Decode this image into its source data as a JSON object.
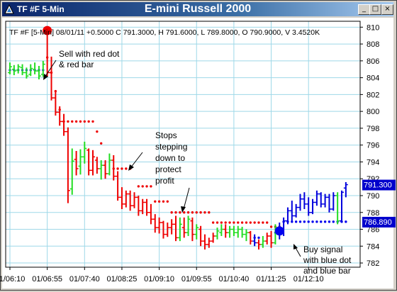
{
  "window": {
    "symbol": "TF #F 5-Min",
    "title": "E-mini Russell 2000",
    "buttons": {
      "minimize": "_",
      "maximize": "□",
      "close": "×"
    }
  },
  "chart_data": {
    "type": "bar",
    "info_line": "TF #F [5-Min] 08/01/11  +0.5000 C 791.3000, H 791.6000, L 789.8000, O 790.9000, V 3.4520K",
    "y_ticks": [
      "810",
      "808",
      "806",
      "804",
      "802",
      "800",
      "798",
      "796",
      "794",
      "792",
      "790",
      "788",
      "786",
      "784",
      "782"
    ],
    "ylim": [
      781.5,
      810.7
    ],
    "x_ticks": [
      "01/06:10",
      "01/06:55",
      "01/07:40",
      "01/08:25",
      "01/09:10",
      "01/09:55",
      "01/10:40",
      "01/11:25",
      "01/12:10"
    ],
    "last_price_label": "791.300",
    "stop_price_label": "786.890",
    "annotations": {
      "sell": [
        "Sell with red dot",
        "& red bar"
      ],
      "stops": [
        "Stops",
        "stepping",
        "down to",
        "protect",
        "profit"
      ],
      "buy": [
        "Buy signal",
        "with blue dot",
        "and blue bar"
      ]
    },
    "colors": {
      "down_bar": "#ee0000",
      "up_bar": "#22dd22",
      "buy_bar": "#0000dd",
      "sell_dot": "#ee0000",
      "buy_dot": "#0000ee",
      "grid": "#9ed8e8",
      "price_label_bg": "#0000cc"
    },
    "bars": [
      {
        "o": 804.6,
        "h": 805.8,
        "l": 804.4,
        "c": 805.3,
        "k": "g"
      },
      {
        "o": 805.0,
        "h": 805.5,
        "l": 804.3,
        "c": 804.8,
        "k": "g"
      },
      {
        "o": 804.9,
        "h": 805.6,
        "l": 804.5,
        "c": 805.3,
        "k": "g"
      },
      {
        "o": 805.2,
        "h": 805.6,
        "l": 804.3,
        "c": 804.6,
        "k": "g"
      },
      {
        "o": 804.6,
        "h": 805.2,
        "l": 803.9,
        "c": 804.2,
        "k": "g"
      },
      {
        "o": 804.4,
        "h": 805.6,
        "l": 804.2,
        "c": 805.1,
        "k": "g"
      },
      {
        "o": 805.0,
        "h": 805.8,
        "l": 804.4,
        "c": 804.8,
        "k": "g"
      },
      {
        "o": 804.8,
        "h": 805.4,
        "l": 803.8,
        "c": 804.2,
        "k": "g"
      },
      {
        "o": 804.4,
        "h": 806.0,
        "l": 804.1,
        "c": 805.6,
        "k": "g"
      },
      {
        "o": 809.5,
        "h": 809.6,
        "l": 804.1,
        "c": 804.6,
        "k": "r"
      },
      {
        "o": 804.6,
        "h": 806.5,
        "l": 801.3,
        "c": 801.6,
        "k": "r"
      },
      {
        "o": 801.6,
        "h": 802.4,
        "l": 799.5,
        "c": 799.9,
        "k": "r"
      },
      {
        "o": 799.9,
        "h": 800.6,
        "l": 798.3,
        "c": 798.8,
        "k": "r"
      },
      {
        "o": 798.8,
        "h": 799.7,
        "l": 797.1,
        "c": 797.6,
        "k": "r"
      },
      {
        "o": 797.6,
        "h": 798.1,
        "l": 789.1,
        "c": 790.6,
        "k": "r"
      },
      {
        "o": 790.8,
        "h": 795.6,
        "l": 790.1,
        "c": 794.1,
        "k": "g"
      },
      {
        "o": 794.3,
        "h": 795.3,
        "l": 792.4,
        "c": 793.2,
        "k": "r"
      },
      {
        "o": 793.5,
        "h": 795.5,
        "l": 792.5,
        "c": 794.6,
        "k": "g"
      },
      {
        "o": 794.6,
        "h": 796.4,
        "l": 793.8,
        "c": 795.6,
        "k": "g"
      },
      {
        "o": 795.4,
        "h": 795.6,
        "l": 792.4,
        "c": 793.0,
        "k": "r"
      },
      {
        "o": 793.0,
        "h": 795.4,
        "l": 792.4,
        "c": 794.6,
        "k": "r"
      },
      {
        "o": 794.2,
        "h": 794.6,
        "l": 792.6,
        "c": 793.2,
        "k": "r"
      },
      {
        "o": 793.2,
        "h": 794.2,
        "l": 791.9,
        "c": 793.6,
        "k": "g"
      },
      {
        "o": 793.6,
        "h": 794.2,
        "l": 792.0,
        "c": 792.6,
        "k": "r"
      },
      {
        "o": 792.6,
        "h": 795.0,
        "l": 792.4,
        "c": 794.2,
        "k": "g"
      },
      {
        "o": 794.2,
        "h": 794.8,
        "l": 791.8,
        "c": 792.3,
        "k": "r"
      },
      {
        "o": 792.3,
        "h": 792.9,
        "l": 789.4,
        "c": 789.8,
        "k": "r"
      },
      {
        "o": 789.8,
        "h": 791.0,
        "l": 788.4,
        "c": 789.0,
        "k": "r"
      },
      {
        "o": 789.0,
        "h": 790.6,
        "l": 788.6,
        "c": 790.2,
        "k": "r"
      },
      {
        "o": 790.2,
        "h": 790.6,
        "l": 788.2,
        "c": 788.8,
        "k": "r"
      },
      {
        "o": 788.8,
        "h": 790.4,
        "l": 788.5,
        "c": 789.8,
        "k": "r"
      },
      {
        "o": 789.8,
        "h": 790.0,
        "l": 787.6,
        "c": 788.2,
        "k": "r"
      },
      {
        "o": 788.2,
        "h": 789.6,
        "l": 787.8,
        "c": 789.2,
        "k": "r"
      },
      {
        "o": 789.2,
        "h": 789.6,
        "l": 787.6,
        "c": 788.0,
        "k": "r"
      },
      {
        "o": 788.0,
        "h": 789.0,
        "l": 786.6,
        "c": 787.2,
        "k": "r"
      },
      {
        "o": 787.2,
        "h": 787.8,
        "l": 785.6,
        "c": 786.2,
        "k": "r"
      },
      {
        "o": 786.2,
        "h": 787.4,
        "l": 785.5,
        "c": 786.8,
        "k": "r"
      },
      {
        "o": 786.8,
        "h": 787.0,
        "l": 784.9,
        "c": 785.4,
        "k": "r"
      },
      {
        "o": 785.4,
        "h": 786.8,
        "l": 785.1,
        "c": 786.2,
        "k": "r"
      },
      {
        "o": 786.2,
        "h": 787.2,
        "l": 785.4,
        "c": 786.6,
        "k": "r"
      },
      {
        "o": 786.6,
        "h": 787.6,
        "l": 784.6,
        "c": 785.0,
        "k": "r"
      },
      {
        "o": 785.0,
        "h": 787.4,
        "l": 784.6,
        "c": 786.6,
        "k": "g"
      },
      {
        "o": 786.2,
        "h": 787.4,
        "l": 785.0,
        "c": 785.6,
        "k": "r"
      },
      {
        "o": 785.6,
        "h": 787.6,
        "l": 785.2,
        "c": 787.2,
        "k": "g"
      },
      {
        "o": 787.0,
        "h": 787.4,
        "l": 784.6,
        "c": 785.4,
        "k": "r"
      },
      {
        "o": 785.4,
        "h": 786.6,
        "l": 784.8,
        "c": 786.2,
        "k": "g"
      },
      {
        "o": 786.0,
        "h": 786.4,
        "l": 784.0,
        "c": 784.6,
        "k": "r"
      },
      {
        "o": 784.6,
        "h": 785.4,
        "l": 783.6,
        "c": 784.2,
        "k": "r"
      },
      {
        "o": 784.2,
        "h": 785.0,
        "l": 783.8,
        "c": 784.6,
        "k": "r"
      },
      {
        "o": 784.6,
        "h": 785.6,
        "l": 784.4,
        "c": 785.2,
        "k": "r"
      },
      {
        "o": 785.2,
        "h": 786.2,
        "l": 784.8,
        "c": 785.8,
        "k": "g"
      },
      {
        "o": 785.6,
        "h": 786.6,
        "l": 785.2,
        "c": 786.0,
        "k": "g"
      },
      {
        "o": 786.0,
        "h": 786.6,
        "l": 785.0,
        "c": 785.6,
        "k": "r"
      },
      {
        "o": 785.6,
        "h": 786.4,
        "l": 785.0,
        "c": 786.0,
        "k": "g"
      },
      {
        "o": 786.0,
        "h": 786.4,
        "l": 785.2,
        "c": 785.6,
        "k": "g"
      },
      {
        "o": 785.6,
        "h": 786.4,
        "l": 785.0,
        "c": 786.0,
        "k": "g"
      },
      {
        "o": 786.0,
        "h": 786.3,
        "l": 785.0,
        "c": 785.4,
        "k": "g"
      },
      {
        "o": 785.4,
        "h": 786.0,
        "l": 784.6,
        "c": 785.6,
        "k": "g"
      },
      {
        "o": 785.6,
        "h": 785.8,
        "l": 784.2,
        "c": 784.6,
        "k": "r"
      },
      {
        "o": 784.6,
        "h": 785.4,
        "l": 784.0,
        "c": 784.4,
        "k": "b"
      },
      {
        "o": 784.4,
        "h": 784.8,
        "l": 783.6,
        "c": 784.2,
        "k": "r"
      },
      {
        "o": 784.2,
        "h": 785.2,
        "l": 783.8,
        "c": 784.6,
        "k": "g"
      },
      {
        "o": 784.6,
        "h": 785.6,
        "l": 784.2,
        "c": 785.2,
        "k": "r"
      },
      {
        "o": 785.2,
        "h": 785.8,
        "l": 783.8,
        "c": 784.4,
        "k": "r"
      },
      {
        "o": 784.4,
        "h": 786.6,
        "l": 784.2,
        "c": 786.2,
        "k": "g"
      },
      {
        "o": 786.2,
        "h": 786.8,
        "l": 784.8,
        "c": 785.6,
        "k": "b"
      },
      {
        "o": 785.6,
        "h": 787.4,
        "l": 785.2,
        "c": 787.0,
        "k": "b"
      },
      {
        "o": 787.0,
        "h": 788.6,
        "l": 786.6,
        "c": 788.2,
        "k": "b"
      },
      {
        "o": 788.2,
        "h": 789.4,
        "l": 787.0,
        "c": 787.6,
        "k": "b"
      },
      {
        "o": 787.6,
        "h": 789.0,
        "l": 787.4,
        "c": 788.6,
        "k": "b"
      },
      {
        "o": 788.6,
        "h": 790.2,
        "l": 788.2,
        "c": 789.6,
        "k": "b"
      },
      {
        "o": 789.6,
        "h": 790.4,
        "l": 788.4,
        "c": 789.0,
        "k": "b"
      },
      {
        "o": 789.0,
        "h": 789.8,
        "l": 787.6,
        "c": 788.0,
        "k": "b"
      },
      {
        "o": 788.0,
        "h": 789.6,
        "l": 787.8,
        "c": 789.2,
        "k": "b"
      },
      {
        "o": 789.2,
        "h": 790.6,
        "l": 788.8,
        "c": 790.2,
        "k": "b"
      },
      {
        "o": 790.2,
        "h": 790.4,
        "l": 788.6,
        "c": 789.0,
        "k": "b"
      },
      {
        "o": 789.0,
        "h": 790.2,
        "l": 788.6,
        "c": 789.8,
        "k": "b"
      },
      {
        "o": 789.8,
        "h": 790.2,
        "l": 788.0,
        "c": 788.4,
        "k": "b"
      },
      {
        "o": 788.4,
        "h": 790.4,
        "l": 788.2,
        "c": 790.0,
        "k": "b"
      },
      {
        "o": 790.0,
        "h": 790.4,
        "l": 786.6,
        "c": 787.0,
        "k": "g"
      },
      {
        "o": 787.0,
        "h": 790.6,
        "l": 786.8,
        "c": 790.4,
        "k": "b"
      },
      {
        "o": 790.9,
        "h": 791.6,
        "l": 789.8,
        "c": 791.3,
        "k": "b"
      }
    ],
    "red_stop_segments": [
      {
        "from": 9,
        "to": 9,
        "y": 806.4
      },
      {
        "from": 10,
        "to": 10,
        "y": 804.6
      },
      {
        "from": 11,
        "to": 11,
        "y": 802.4
      },
      {
        "from": 12,
        "to": 12,
        "y": 800.2
      },
      {
        "from": 13,
        "to": 20,
        "y": 798.8
      },
      {
        "from": 21,
        "to": 21,
        "y": 797.6
      },
      {
        "from": 22,
        "to": 22,
        "y": 796.2
      },
      {
        "from": 25,
        "to": 29,
        "y": 793.2
      },
      {
        "from": 31,
        "to": 34,
        "y": 791.1
      },
      {
        "from": 35,
        "to": 38,
        "y": 789.3
      },
      {
        "from": 39,
        "to": 48,
        "y": 788.0
      },
      {
        "from": 49,
        "to": 62,
        "y": 786.8
      },
      {
        "from": 63,
        "to": 65,
        "y": 786.3
      }
    ],
    "blue_stop_segments": [
      {
        "from": 0,
        "to": 8,
        "y": 804.9
      },
      {
        "from": 59,
        "to": 60,
        "y": 785.0
      },
      {
        "from": 64,
        "to": 65,
        "y": 785.6
      },
      {
        "from": 66,
        "to": 81,
        "y": 786.9
      }
    ],
    "sell_dot": {
      "bar": 9,
      "y": 809.6
    },
    "buy_dot": {
      "bar": 65,
      "y": 785.8
    }
  }
}
